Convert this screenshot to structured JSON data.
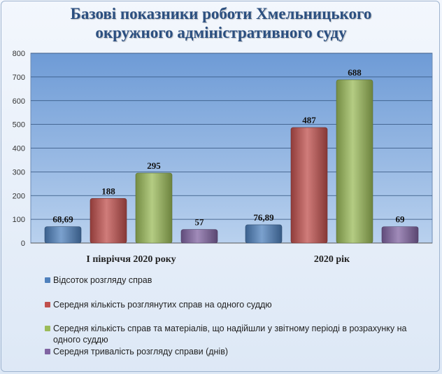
{
  "chart_data": {
    "type": "bar",
    "title_lines": [
      "Базові показники роботи Хмельницького",
      "окружного адміністративного  суду"
    ],
    "categories": [
      "І півріччя 2020 року",
      "2020 рік"
    ],
    "ylim": [
      0,
      800
    ],
    "yticks": [
      "0",
      "100",
      "200",
      "300",
      "400",
      "500",
      "600",
      "700",
      "800"
    ],
    "grid": true,
    "legend_position": "bottom",
    "series": [
      {
        "name": "Відсоток розгляду справ",
        "values": [
          68.69,
          76.89
        ],
        "labels": [
          "68,69",
          "76,89"
        ],
        "color": "#4f81bd"
      },
      {
        "name": "Середня кількість розглянутих справ на одного суддю",
        "values": [
          188,
          487
        ],
        "labels": [
          "188",
          "487"
        ],
        "color": "#c0504d"
      },
      {
        "name": "Середня кількість справ та матеріалів, що надійшли у звітному періоді в розрахунку на одного суддю",
        "values": [
          295,
          688
        ],
        "labels": [
          "295",
          "688"
        ],
        "color": "#9bbb59"
      },
      {
        "name": "Середня тривалість розгляду справи (днів)",
        "values": [
          57,
          69
        ],
        "labels": [
          "57",
          "69"
        ],
        "color": "#8064a2"
      }
    ]
  },
  "legend_line_break": {
    "series_index": 2,
    "first": "Середня кількість справ та матеріалів, що надійшли у звітному періоді в розрахунку на",
    "second": "одного суддю"
  }
}
